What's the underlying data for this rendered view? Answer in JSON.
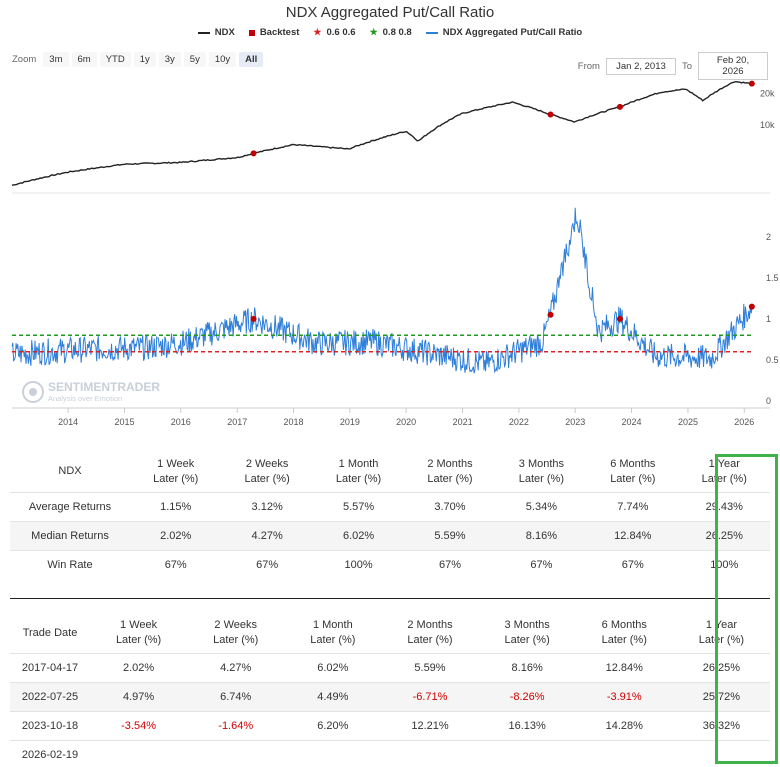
{
  "chart_data": {
    "type": "line",
    "title": "NDX Aggregated Put/Call Ratio",
    "legend": [
      "NDX",
      "Backtest",
      "0.6 0.6",
      "0.8 0.8",
      "NDX Aggregated Put/Call Ratio"
    ],
    "x_ticks": [
      "2014",
      "2015",
      "2016",
      "2017",
      "2018",
      "2019",
      "2020",
      "2021",
      "2022",
      "2023",
      "2024",
      "2025",
      "2026"
    ],
    "ndx_axis_ticks": [
      "10k",
      "20k"
    ],
    "ratio_axis_ticks": [
      "0",
      "0.5",
      "1",
      "1.5",
      "2"
    ],
    "ndx_series": [
      {
        "date": "2013-01-02",
        "value": 2660
      },
      {
        "date": "2014-01-02",
        "value": 3560
      },
      {
        "date": "2015-01-02",
        "value": 4230
      },
      {
        "date": "2016-01-04",
        "value": 4400
      },
      {
        "date": "2017-01-03",
        "value": 4900
      },
      {
        "date": "2017-04-17",
        "value": 5370
      },
      {
        "date": "2018-01-02",
        "value": 6500
      },
      {
        "date": "2018-12-24",
        "value": 5900
      },
      {
        "date": "2019-12-31",
        "value": 8730
      },
      {
        "date": "2020-03-20",
        "value": 7000
      },
      {
        "date": "2020-12-31",
        "value": 12900
      },
      {
        "date": "2021-11-19",
        "value": 16500
      },
      {
        "date": "2022-07-25",
        "value": 12600
      },
      {
        "date": "2022-12-28",
        "value": 10700
      },
      {
        "date": "2023-10-18",
        "value": 14900
      },
      {
        "date": "2024-07-10",
        "value": 20600
      },
      {
        "date": "2024-12-16",
        "value": 22000
      },
      {
        "date": "2025-04-08",
        "value": 17100
      },
      {
        "date": "2025-10-29",
        "value": 26000
      },
      {
        "date": "2026-02-19",
        "value": 24800
      }
    ],
    "ratio_series": [
      {
        "date": "2013-01-02",
        "value": 0.57
      },
      {
        "date": "2014-01-02",
        "value": 0.62
      },
      {
        "date": "2015-06-01",
        "value": 0.65
      },
      {
        "date": "2016-02-01",
        "value": 0.72
      },
      {
        "date": "2017-04-17",
        "value": 1.0
      },
      {
        "date": "2018-06-01",
        "value": 0.7
      },
      {
        "date": "2019-06-01",
        "value": 0.72
      },
      {
        "date": "2020-06-01",
        "value": 0.58
      },
      {
        "date": "2021-06-01",
        "value": 0.45
      },
      {
        "date": "2022-06-01",
        "value": 0.72
      },
      {
        "date": "2022-07-25",
        "value": 1.05
      },
      {
        "date": "2023-01-10",
        "value": 2.3
      },
      {
        "date": "2023-06-01",
        "value": 0.85
      },
      {
        "date": "2023-10-18",
        "value": 1.0
      },
      {
        "date": "2024-06-01",
        "value": 0.55
      },
      {
        "date": "2025-06-01",
        "value": 0.52
      },
      {
        "date": "2026-02-19",
        "value": 1.15
      }
    ],
    "backtest_points": [
      "2017-04-17",
      "2022-07-25",
      "2023-10-18",
      "2026-02-19"
    ],
    "reference_lines": [
      0.6,
      0.8
    ],
    "colors": {
      "ndx": "#222222",
      "ratio": "#2f7ed8",
      "backtest": "#c00000",
      "ref_low": "#e02020",
      "ref_high": "#1f9a1f"
    }
  },
  "controls": {
    "zoom_label": "Zoom",
    "zoom_buttons": [
      "3m",
      "6m",
      "YTD",
      "1y",
      "3y",
      "5y",
      "10y",
      "All"
    ],
    "active_zoom": "All",
    "from_label": "From",
    "from_value": "Jan 2, 2013",
    "to_label": "To",
    "to_value": "Feb 20, 2026"
  },
  "watermark": {
    "name": "SENTIMENTRADER",
    "tagline": "Analysis over Emotion"
  },
  "summary_table": {
    "row_header": "NDX",
    "columns": [
      "1 Week Later (%)",
      "2 Weeks Later (%)",
      "1 Month Later (%)",
      "2 Months Later (%)",
      "3 Months Later (%)",
      "6 Months Later (%)",
      "1 Year Later (%)"
    ],
    "columns_line1": [
      "1 Week",
      "2 Weeks",
      "1 Month",
      "2 Months",
      "3 Months",
      "6 Months",
      "1 Year"
    ],
    "columns_line2": "Later (%)",
    "rows": [
      {
        "label": "Average Returns",
        "values": [
          "1.15%",
          "3.12%",
          "5.57%",
          "3.70%",
          "5.34%",
          "7.74%",
          "29.43%"
        ]
      },
      {
        "label": "Median Returns",
        "values": [
          "2.02%",
          "4.27%",
          "6.02%",
          "5.59%",
          "8.16%",
          "12.84%",
          "26.25%"
        ]
      },
      {
        "label": "Win Rate",
        "values": [
          "67%",
          "67%",
          "100%",
          "67%",
          "67%",
          "67%",
          "100%"
        ]
      }
    ]
  },
  "trades_table": {
    "row_header": "Trade Date",
    "rows": [
      {
        "date": "2017-04-17",
        "values": [
          "2.02%",
          "4.27%",
          "6.02%",
          "5.59%",
          "8.16%",
          "12.84%",
          "26.25%"
        ]
      },
      {
        "date": "2022-07-25",
        "values": [
          "4.97%",
          "6.74%",
          "4.49%",
          "-6.71%",
          "-8.26%",
          "-3.91%",
          "25.72%"
        ]
      },
      {
        "date": "2023-10-18",
        "values": [
          "-3.54%",
          "-1.64%",
          "6.20%",
          "12.21%",
          "16.13%",
          "14.28%",
          "36.32%"
        ]
      }
    ],
    "pending_date": "2026-02-19"
  }
}
